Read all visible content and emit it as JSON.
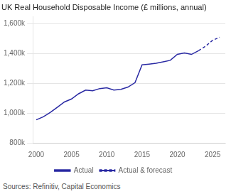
{
  "chart_data": {
    "type": "line",
    "title": "UK Real Household Disposable Income (£ millions, annual)",
    "annotation": "Sources: Refinitiv, Capital Economics",
    "series": [
      {
        "name": "Actual",
        "color": "#2929a3",
        "line_style": "solid",
        "x": [
          2000,
          2001,
          2002,
          2003,
          2004,
          2005,
          2006,
          2007,
          2008,
          2009,
          2010,
          2011,
          2012,
          2013,
          2014,
          2015,
          2016,
          2017,
          2018,
          2019,
          2020,
          2021,
          2022,
          2023
        ],
        "values": [
          955000,
          975000,
          1005000,
          1040000,
          1075000,
          1095000,
          1130000,
          1155000,
          1150000,
          1165000,
          1170000,
          1155000,
          1160000,
          1175000,
          1205000,
          1325000,
          1330000,
          1335000,
          1345000,
          1355000,
          1395000,
          1405000,
          1395000,
          1420000
        ]
      },
      {
        "name": "Actual & forecast",
        "color": "#2929a3",
        "line_style": "dashed",
        "x": [
          2023,
          2024,
          2025,
          2026
        ],
        "values": [
          1420000,
          1450000,
          1490000,
          1510000
        ]
      }
    ],
    "xlim": [
      1999.5,
      2026.8
    ],
    "xticks": [
      2000,
      2005,
      2010,
      2015,
      2020,
      2025
    ],
    "ylim": [
      800000,
      1650000
    ],
    "yticks": [
      {
        "value": 800000,
        "label": "800k"
      },
      {
        "value": 1000000,
        "label": "1,000k"
      },
      {
        "value": 1200000,
        "label": "1,200k"
      },
      {
        "value": 1400000,
        "label": "1,400k"
      },
      {
        "value": 1600000,
        "label": "1,600k"
      }
    ],
    "grid": "y",
    "legend": "bottom"
  }
}
